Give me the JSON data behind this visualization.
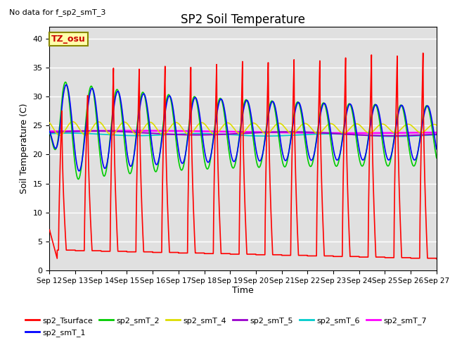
{
  "title": "SP2 Soil Temperature",
  "ylabel": "Soil Temperature (C)",
  "xlabel": "Time",
  "note": "No data for f_sp2_smT_3",
  "tz_label": "TZ_osu",
  "ylim": [
    0,
    42
  ],
  "yticks": [
    0,
    5,
    10,
    15,
    20,
    25,
    30,
    35,
    40
  ],
  "days": 15.0,
  "n_points": 4000,
  "series": {
    "sp2_Tsurface": {
      "color": "#FF0000",
      "lw": 1.2
    },
    "sp2_smT_1": {
      "color": "#0000FF",
      "lw": 1.2
    },
    "sp2_smT_2": {
      "color": "#00CC00",
      "lw": 1.2
    },
    "sp2_smT_4": {
      "color": "#DDDD00",
      "lw": 1.2
    },
    "sp2_smT_5": {
      "color": "#9900CC",
      "lw": 1.5
    },
    "sp2_smT_6": {
      "color": "#00CCCC",
      "lw": 1.2
    },
    "sp2_smT_7": {
      "color": "#FF00FF",
      "lw": 1.8
    }
  },
  "bg_color": "#E0E0E0",
  "fig_bg": "#FFFFFF",
  "grid_color": "#FFFFFF",
  "x_tick_labels": [
    "Sep 12",
    "Sep 13",
    "Sep 14",
    "Sep 15",
    "Sep 16",
    "Sep 17",
    "Sep 18",
    "Sep 19",
    "Sep 20",
    "Sep 21",
    "Sep 22",
    "Sep 23",
    "Sep 24",
    "Sep 25",
    "Sep 26",
    "Sep 27"
  ]
}
